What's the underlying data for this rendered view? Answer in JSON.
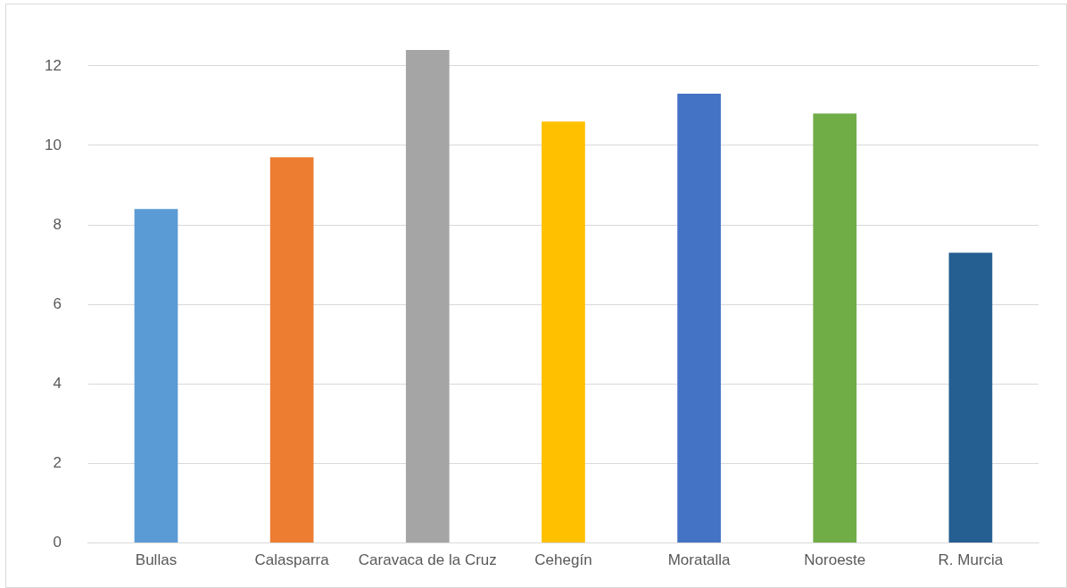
{
  "chart_data": {
    "type": "bar",
    "categories": [
      "Bullas",
      "Calasparra",
      "Caravaca de la Cruz",
      "Cehegín",
      "Moratalla",
      "Noroeste",
      "R. Murcia"
    ],
    "values": [
      8.4,
      9.7,
      12.4,
      10.6,
      11.3,
      10.8,
      7.3
    ],
    "colors": [
      "#5b9bd5",
      "#ed7d31",
      "#a5a5a5",
      "#ffc000",
      "#4472c4",
      "#70ad47",
      "#255e91"
    ],
    "ylim": [
      0,
      12.4
    ],
    "yticks": [
      0,
      2,
      4,
      6,
      8,
      10,
      12
    ],
    "grid": "y",
    "legend": false
  }
}
